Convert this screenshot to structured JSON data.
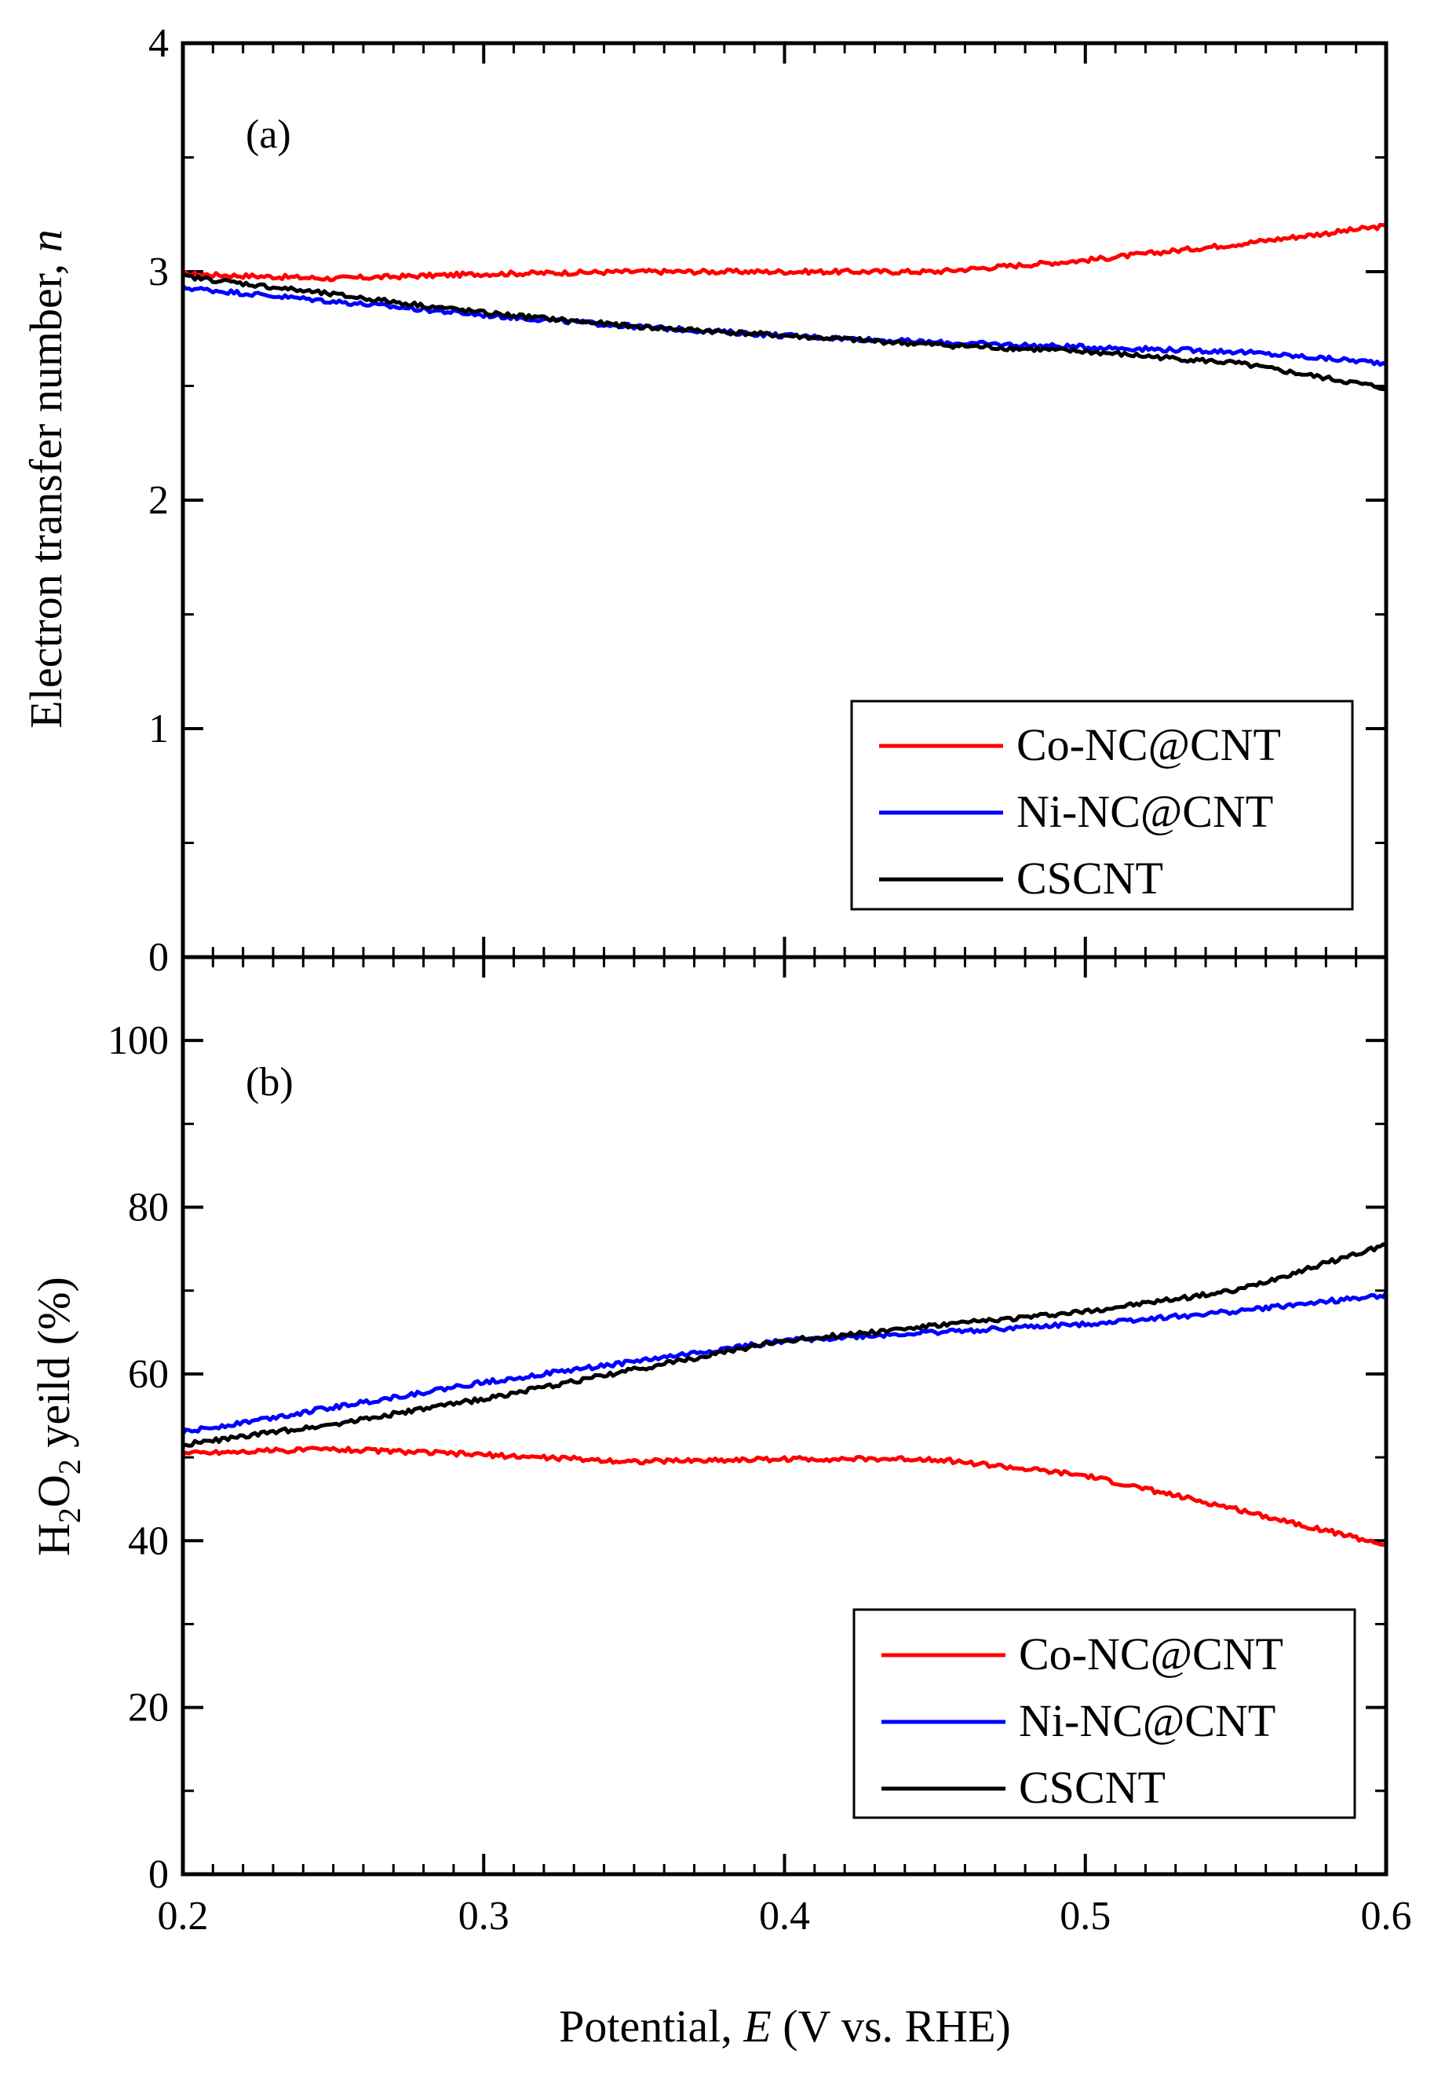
{
  "chart_data": [
    {
      "type": "line",
      "panel_label": "(a)",
      "ylabel": "Electron transfer number, n",
      "ylabel_text": "Electron transfer number, ",
      "ylabel_var": "n",
      "xlim": [
        0.2,
        0.6
      ],
      "ylim": [
        0,
        4
      ],
      "y_ticks": [
        "0",
        "1",
        "2",
        "3",
        "4"
      ],
      "legend_position": "bottom-right",
      "series": [
        {
          "name": "Co-NC@CNT",
          "color": "#ff0000",
          "x": [
            0.2,
            0.25,
            0.3,
            0.35,
            0.4,
            0.45,
            0.5,
            0.55,
            0.6
          ],
          "y": [
            2.99,
            2.97,
            2.99,
            3.0,
            3.0,
            3.0,
            3.05,
            3.12,
            3.2
          ]
        },
        {
          "name": "Ni-NC@CNT",
          "color": "#0000ff",
          "x": [
            0.2,
            0.25,
            0.3,
            0.35,
            0.4,
            0.45,
            0.5,
            0.55,
            0.6
          ],
          "y": [
            2.93,
            2.87,
            2.81,
            2.76,
            2.72,
            2.69,
            2.67,
            2.65,
            2.6
          ]
        },
        {
          "name": "CSCNT",
          "color": "#000000",
          "x": [
            0.2,
            0.25,
            0.3,
            0.35,
            0.4,
            0.45,
            0.5,
            0.55,
            0.6
          ],
          "y": [
            2.98,
            2.9,
            2.82,
            2.76,
            2.72,
            2.68,
            2.65,
            2.6,
            2.49
          ]
        }
      ]
    },
    {
      "type": "line",
      "panel_label": "(b)",
      "ylabel": "H2O2 yeild (%)",
      "ylabel_h": "H",
      "ylabel_sub1": "2",
      "ylabel_o": "O",
      "ylabel_sub2": "2",
      "ylabel_rest": " yeild (%)",
      "xlabel": "Potential, E (V vs. RHE)",
      "xlabel_pre": "Potential, ",
      "xlabel_var": "E",
      "xlabel_post": " (V vs. RHE)",
      "xlim": [
        0.2,
        0.6
      ],
      "ylim": [
        0,
        110
      ],
      "x_ticks": [
        "0.2",
        "0.3",
        "0.4",
        "0.5",
        "0.6"
      ],
      "y_ticks": [
        "0",
        "20",
        "40",
        "60",
        "80",
        "100"
      ],
      "legend_position": "bottom-right",
      "series": [
        {
          "name": "Co-NC@CNT",
          "color": "#ff0000",
          "x": [
            0.2,
            0.25,
            0.3,
            0.35,
            0.4,
            0.45,
            0.5,
            0.55,
            0.6
          ],
          "y": [
            50.5,
            51.0,
            50.3,
            49.5,
            49.8,
            49.8,
            47.8,
            43.8,
            39.5
          ]
        },
        {
          "name": "Ni-NC@CNT",
          "color": "#0000ff",
          "x": [
            0.2,
            0.25,
            0.3,
            0.35,
            0.4,
            0.45,
            0.5,
            0.55,
            0.6
          ],
          "y": [
            53.0,
            56.0,
            59.0,
            61.5,
            64.0,
            65.0,
            66.0,
            67.5,
            69.5
          ]
        },
        {
          "name": "CSCNT",
          "color": "#000000",
          "x": [
            0.2,
            0.25,
            0.3,
            0.35,
            0.4,
            0.45,
            0.5,
            0.55,
            0.6
          ],
          "y": [
            51.5,
            54.0,
            57.0,
            60.5,
            64.0,
            65.8,
            67.5,
            70.0,
            75.5
          ]
        }
      ]
    }
  ]
}
